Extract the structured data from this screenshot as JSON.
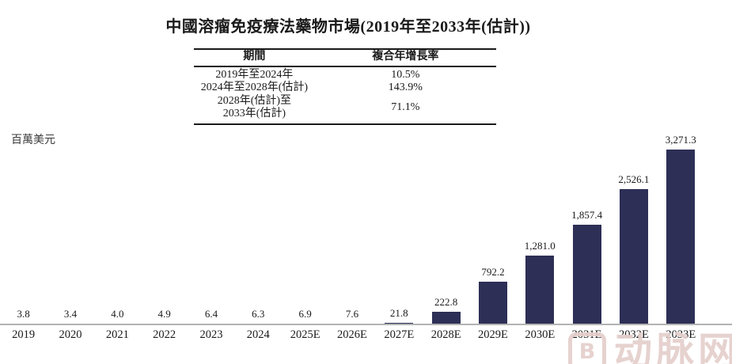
{
  "title": "中國溶瘤免疫療法藥物市場(2019年至2033年(估計))",
  "unit_label": "百萬美元",
  "cagr_table": {
    "headers": [
      "期間",
      "複合年增長率"
    ],
    "rows": [
      {
        "period": "2019年至2024年",
        "cagr": "10.5%"
      },
      {
        "period": "2024年至2028年(估計)",
        "cagr": "143.9%"
      },
      {
        "period": "2028年(估計)至\n2033年(估計)",
        "cagr": "71.1%"
      }
    ]
  },
  "watermark": {
    "logo_text": "B",
    "text": "动脉网"
  },
  "chart_data": {
    "type": "bar",
    "title": "中國溶瘤免疫療法藥物市場(2019年至2033年(估計))",
    "xlabel": "",
    "ylabel": "百萬美元",
    "unit": "百萬美元 (million USD)",
    "categories": [
      "2019",
      "2020",
      "2021",
      "2022",
      "2023",
      "2024",
      "2025E",
      "2026E",
      "2027E",
      "2028E",
      "2029E",
      "2030E",
      "2031E",
      "2032E",
      "2033E"
    ],
    "values": [
      3.8,
      3.4,
      4.0,
      4.9,
      6.4,
      6.3,
      6.9,
      7.6,
      21.8,
      222.8,
      792.2,
      1281.0,
      1857.4,
      2526.1,
      3271.3
    ],
    "value_labels": [
      "3.8",
      "3.4",
      "4.0",
      "4.9",
      "6.4",
      "6.3",
      "6.9",
      "7.6",
      "21.8",
      "222.8",
      "792.2",
      "1,281.0",
      "1,857.4",
      "2,526.1",
      "3,271.3"
    ],
    "ylim": [
      0,
      3500
    ],
    "grid": false,
    "legend": false,
    "bar_color": "#2d2f56",
    "axis_line_color": "#b3b3b3",
    "annotations": {
      "cagr_2019_2024": "10.5%",
      "cagr_2024_2028E": "143.9%",
      "cagr_2028E_2033E": "71.1%"
    }
  }
}
